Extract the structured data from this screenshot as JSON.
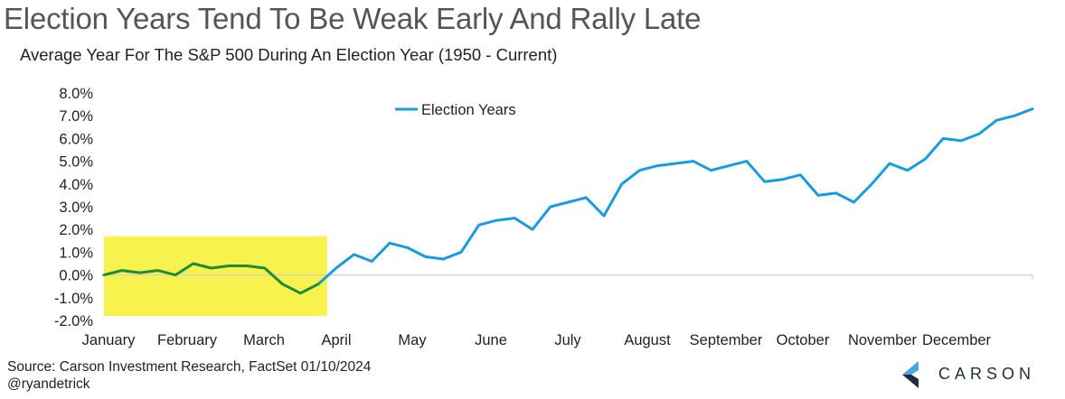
{
  "title": "Election Years Tend To Be Weak Early And Rally Late",
  "subtitle": "Average Year For The S&P 500 During An Election Year (1950 - Current)",
  "source": "Source: Carson Investment Research, FactSet 01/10/2024",
  "handle": "@ryandetrick",
  "logo": {
    "text": "CARSON",
    "icon": "carson-chevron-icon",
    "colors": [
      "#1f2d3d",
      "#4aa8e0"
    ]
  },
  "colors": {
    "line": "#1a9be0",
    "highlight_line": "#1e8a3a",
    "highlight_box": "#f7f24d"
  },
  "chart_data": {
    "type": "line",
    "title": "Election Years Tend To Be Weak Early And Rally Late",
    "subtitle": "Average Year For The S&P 500 During An Election Year (1950 - Current)",
    "xlabel": "",
    "ylabel": "",
    "ylim": [
      -2.0,
      8.0
    ],
    "yticks": [
      -2.0,
      -1.0,
      0.0,
      1.0,
      2.0,
      3.0,
      4.0,
      5.0,
      6.0,
      7.0,
      8.0
    ],
    "ytick_labels": [
      "-2.0%",
      "-1.0%",
      "0.0%",
      "1.0%",
      "2.0%",
      "3.0%",
      "4.0%",
      "5.0%",
      "6.0%",
      "7.0%",
      "8.0%"
    ],
    "xticks": [
      "January",
      "February",
      "March",
      "April",
      "May",
      "June",
      "July",
      "August",
      "September",
      "October",
      "November",
      "December"
    ],
    "legend": {
      "position": "top-center",
      "entries": [
        "Election Years"
      ]
    },
    "grid": false,
    "highlight": {
      "from_week": 0,
      "to_week": 12.5,
      "ylim": [
        -1.8,
        1.7
      ]
    },
    "series": [
      {
        "name": "Election Years",
        "weeks": [
          0,
          1,
          2,
          3,
          4,
          5,
          6,
          7,
          8,
          9,
          10,
          11,
          12,
          13,
          14,
          15,
          16,
          17,
          18,
          19,
          20,
          21,
          22,
          23,
          24,
          25,
          26,
          27,
          28,
          29,
          30,
          31,
          32,
          33,
          34,
          35,
          36,
          37,
          38,
          39,
          40,
          41,
          42,
          43,
          44,
          45,
          46,
          47,
          48,
          49,
          50,
          51,
          52
        ],
        "values": [
          0.0,
          0.2,
          0.1,
          0.2,
          0.0,
          0.5,
          0.3,
          0.4,
          0.4,
          0.3,
          -0.4,
          -0.8,
          -0.4,
          0.3,
          0.9,
          0.6,
          1.4,
          1.2,
          0.8,
          0.7,
          1.0,
          2.2,
          2.4,
          2.5,
          2.0,
          3.0,
          3.2,
          3.4,
          2.6,
          4.0,
          4.6,
          4.8,
          4.9,
          5.0,
          4.6,
          4.8,
          5.0,
          4.1,
          4.2,
          4.4,
          3.5,
          3.6,
          3.2,
          4.0,
          4.9,
          4.6,
          5.1,
          6.0,
          5.9,
          6.2,
          6.8,
          7.0,
          7.3
        ]
      }
    ]
  }
}
